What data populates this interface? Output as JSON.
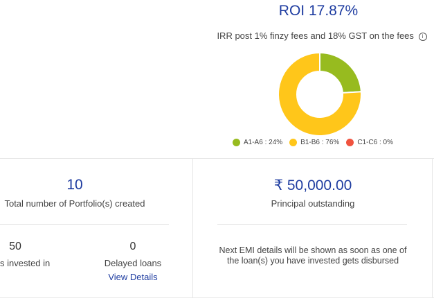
{
  "roi": {
    "title": "ROI 17.87%",
    "subtitle": "IRR post 1% finzy fees and 18% GST on the fees",
    "info_icon": "info-icon"
  },
  "chart_data": {
    "type": "pie",
    "categories": [
      "A1-A6",
      "B1-B6",
      "C1-C6"
    ],
    "values": [
      24,
      76,
      0
    ],
    "colors": [
      "#97bb1f",
      "#ffc61a",
      "#f0533f"
    ],
    "legend": [
      "A1-A6 : 24%",
      "B1-B6 : 76%",
      "C1-C6 : 0%"
    ],
    "legend_position": "bottom"
  },
  "portfolio": {
    "count": "10",
    "count_label": "Total number of Portfolio(s) created",
    "invested_value": "50",
    "invested_label": "s invested in",
    "delayed_value": "0",
    "delayed_label": "Delayed loans",
    "view_details": "View Details"
  },
  "principal": {
    "amount": "₹ 50,000.00",
    "label": "Principal outstanding",
    "emi_note_line1": "Next EMI details will be shown as soon as one of",
    "emi_note_line2": "the loan(s) you have invested gets disbursed"
  }
}
